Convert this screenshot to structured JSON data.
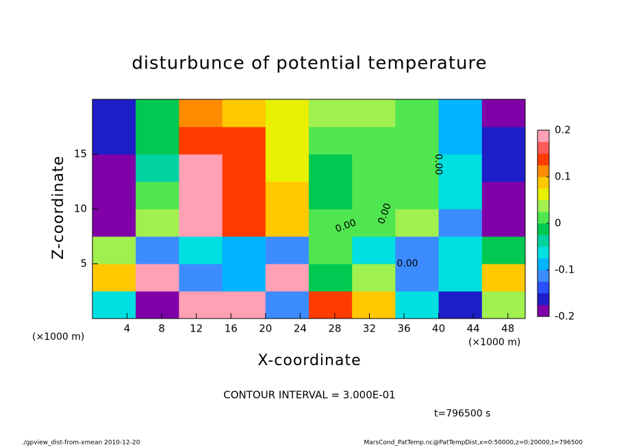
{
  "chart_data": {
    "type": "heatmap",
    "title": "disturbunce of potential temperature",
    "x_label": "X-coordinate",
    "y_label": "Z-coordinate",
    "x_unit_left": "(×1000 m)",
    "x_unit_right": "(×1000 m)",
    "contour_interval": "CONTOUR INTERVAL = 3.000E-01",
    "time_label": "t=796500 s",
    "footer_left": "./gpview_dist-from-xmean  2010-12-20",
    "footer_right": "MarsCond_PatTemp.nc@PatTempDist,x=0:50000,z=0:20000,t=796500",
    "contour_labels": [
      "0.00",
      "0.00",
      "0.00",
      "0.00"
    ],
    "x": [
      2.5,
      7.5,
      12.5,
      17.5,
      22.5,
      27.5,
      32.5,
      37.5,
      42.5,
      47.5
    ],
    "y": [
      1.25,
      3.75,
      6.25,
      8.75,
      11.25,
      13.75,
      16.25,
      18.75
    ],
    "z": [
      [
        -0.05,
        -0.2,
        0.2,
        0.2,
        -0.1,
        0.15,
        0.1,
        -0.05,
        -0.15,
        0.05
      ],
      [
        0.1,
        0.2,
        -0.1,
        -0.08,
        0.2,
        0.0,
        0.05,
        -0.1,
        -0.05,
        0.1
      ],
      [
        0.05,
        -0.1,
        -0.05,
        -0.08,
        -0.1,
        0.02,
        -0.05,
        -0.1,
        -0.05,
        -0.02
      ],
      [
        -0.2,
        0.05,
        0.2,
        0.15,
        0.08,
        0.02,
        0.02,
        0.03,
        -0.1,
        -0.2
      ],
      [
        -0.2,
        0.02,
        0.2,
        0.15,
        0.08,
        0.0,
        0.01,
        0.02,
        -0.05,
        -0.2
      ],
      [
        -0.2,
        -0.03,
        0.18,
        0.14,
        0.07,
        0.0,
        0.01,
        0.02,
        -0.06,
        -0.15
      ],
      [
        -0.17,
        -0.02,
        0.15,
        0.13,
        0.06,
        0.02,
        0.02,
        0.02,
        -0.08,
        -0.17
      ],
      [
        -0.15,
        -0.02,
        0.12,
        0.1,
        0.06,
        0.04,
        0.03,
        0.02,
        -0.08,
        -0.18
      ]
    ],
    "xlim": [
      0,
      50
    ],
    "ylim": [
      0,
      20
    ],
    "xticks": [
      4,
      8,
      12,
      16,
      20,
      24,
      28,
      32,
      36,
      40,
      44,
      48
    ],
    "yticks": [
      5,
      10,
      15
    ],
    "levels": [
      -0.2,
      -0.175,
      -0.15,
      -0.125,
      -0.1,
      -0.075,
      -0.05,
      -0.025,
      0,
      0.025,
      0.05,
      0.075,
      0.1,
      0.125,
      0.15,
      0.175,
      0.2
    ],
    "colors": [
      "#8000a8",
      "#1e1ec8",
      "#2850ff",
      "#3c8cff",
      "#00b4ff",
      "#00e0e0",
      "#00d2a0",
      "#00c850",
      "#50e650",
      "#a0f050",
      "#e6f000",
      "#ffc800",
      "#ff8c00",
      "#ff3c00",
      "#ff5a5a",
      "#ffa0b4"
    ],
    "colorbar_ticks": [
      -0.2,
      -0.1,
      0,
      0.1,
      0.2
    ]
  }
}
